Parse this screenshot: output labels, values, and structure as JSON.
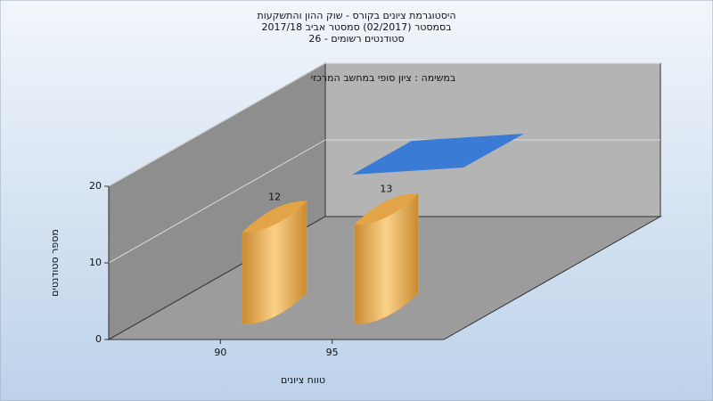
{
  "chart_data": {
    "type": "bar3d",
    "title": "היסטוגרמת ציונים בקורס - שוק ההון והתשקעות",
    "subtitle": [
      "בסמסטר  (02/2017)  סמסטר אביב 2017/18",
      "סטודנטים רשומים - 26"
    ],
    "x_label": "טווח ציונים",
    "y_label": "מספר סטודנטים",
    "categories": [
      "90",
      "95"
    ],
    "series": [
      {
        "name": "במשימה : ציון סופי במחשב המרכזי",
        "color": "#e3a447",
        "values": [
          12,
          13
        ]
      }
    ],
    "legend_color": "#3a7bd5",
    "ylim": [
      0,
      20
    ],
    "yticks": [
      0,
      10,
      20
    ],
    "grid": true
  }
}
